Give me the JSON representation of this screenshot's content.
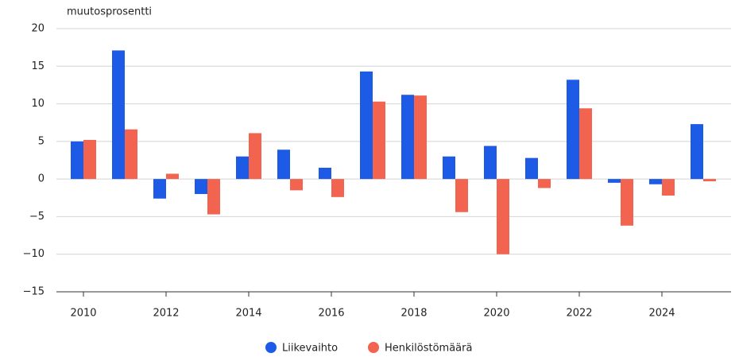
{
  "chart_data": {
    "type": "bar",
    "y_axis_label": "muutosprosentti",
    "categories": [
      "2010",
      null,
      "2012",
      null,
      "2014",
      null,
      "2016",
      null,
      "2018",
      null,
      "2020",
      null,
      "2022",
      null,
      "2024",
      null
    ],
    "series": [
      {
        "name": "Liikevaihto",
        "color": "#1d5be6",
        "values": [
          5.0,
          17.1,
          -2.6,
          -2.0,
          3.0,
          3.9,
          1.5,
          14.3,
          11.2,
          3.0,
          4.4,
          2.8,
          13.2,
          -0.5,
          -0.7,
          7.3
        ]
      },
      {
        "name": "Henkilöstömäärä",
        "color": "#f2644f",
        "values": [
          5.2,
          6.6,
          0.7,
          -4.7,
          6.1,
          -1.5,
          -2.4,
          10.3,
          11.1,
          -4.4,
          -10.0,
          -1.2,
          9.4,
          -6.2,
          -2.2,
          -0.3
        ]
      }
    ],
    "ylim": [
      -15,
      20
    ],
    "yticks": [
      {
        "value": -15,
        "label": "−15"
      },
      {
        "value": -10,
        "label": "−10"
      },
      {
        "value": -5,
        "label": "−5"
      },
      0,
      5,
      10,
      15,
      20
    ],
    "grid": true,
    "legend": "bottom"
  }
}
